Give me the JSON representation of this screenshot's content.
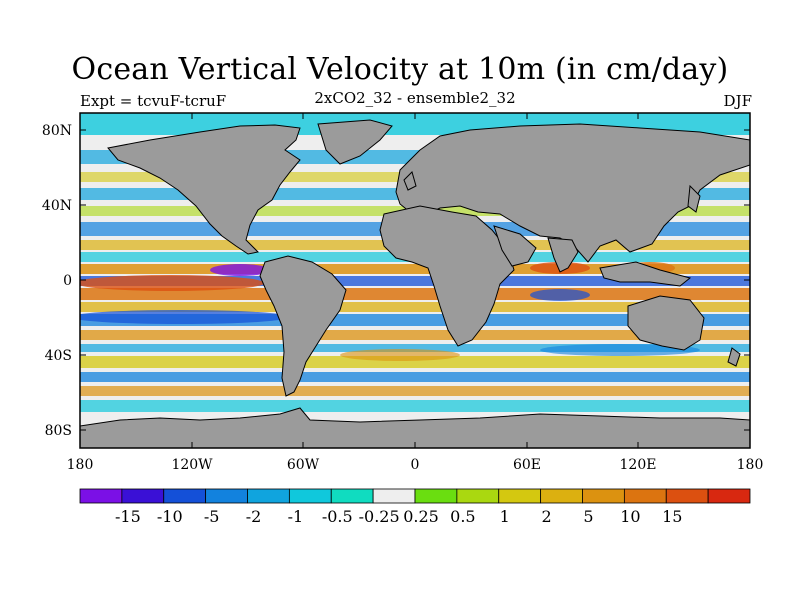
{
  "title": "Ocean Vertical Velocity at 10m (in cm/day)",
  "left_subtitle": "Expt = tcvuF-tcruF",
  "center_subtitle": "2xCO2_32 - ensemble2_32",
  "right_subtitle": "DJF",
  "colors": {
    "land": "#9b9b9b",
    "coast": "#000000",
    "background": "#ffffff"
  },
  "axes": {
    "y_ticks": [
      "80N",
      "40N",
      "0",
      "40S",
      "80S"
    ],
    "x_ticks": [
      "180",
      "120W",
      "60W",
      "0",
      "60E",
      "120E",
      "180"
    ]
  },
  "colorbar": {
    "colors": [
      "#7b10e6",
      "#3a10d6",
      "#1450d8",
      "#1282de",
      "#10a4de",
      "#10c8dc",
      "#10dcc0",
      "#eeeeee",
      "#6ade10",
      "#aad810",
      "#d4c810",
      "#dcb010",
      "#dc9210",
      "#dc7410",
      "#dc5010",
      "#d82810"
    ],
    "labels": [
      "-15",
      "-10",
      "-5",
      "-2",
      "-1",
      "-0.5",
      "-0.25",
      "0.25",
      "0.5",
      "1",
      "2",
      "5",
      "10",
      "15"
    ]
  }
}
